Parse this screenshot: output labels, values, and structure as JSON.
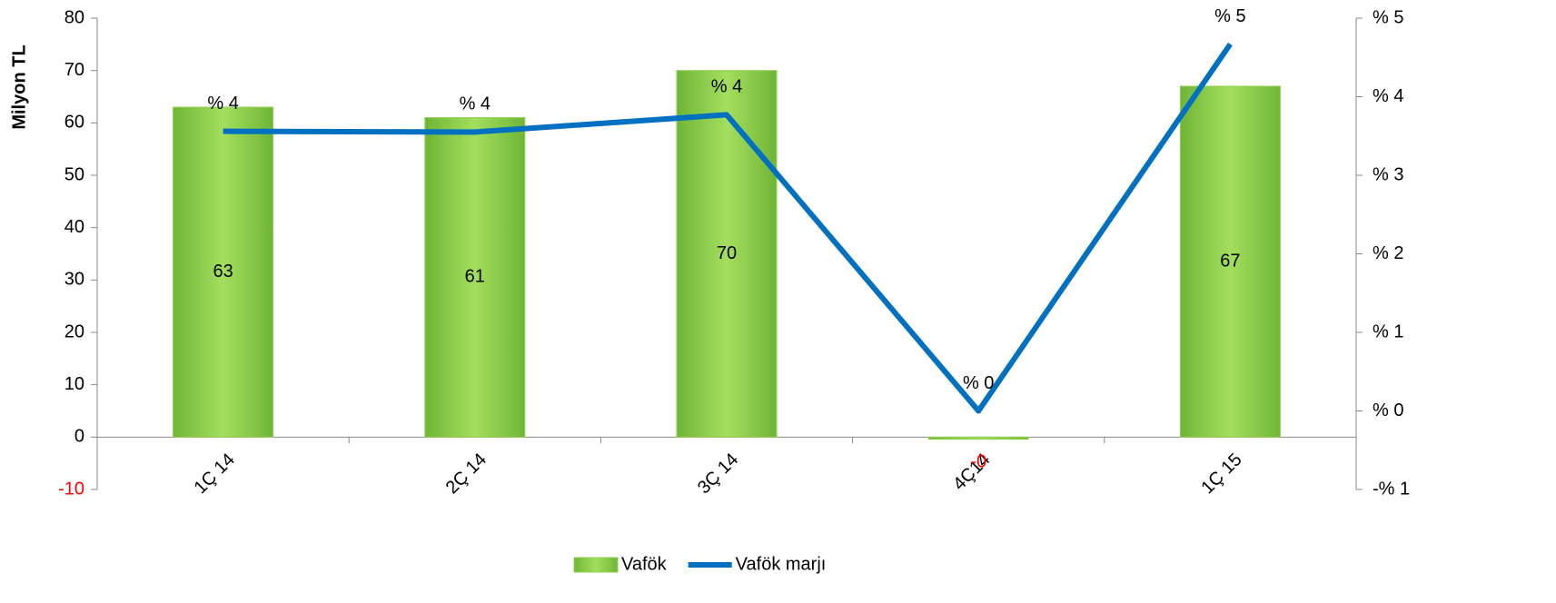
{
  "chart_data": {
    "type": "bar",
    "y_label": "Milyon TL",
    "categories": [
      "1Ç 14",
      "2Ç 14",
      "3Ç 14",
      "4Ç14",
      "1Ç 15"
    ],
    "series": [
      {
        "name": "Vafök",
        "type": "bar",
        "color": "#92d050",
        "values": [
          63,
          61,
          70,
          -0.4,
          67
        ],
        "value_labels": [
          "63",
          "61",
          "70",
          "-0",
          "67"
        ]
      },
      {
        "name": "Vafök marjı",
        "type": "line",
        "axis": "y2",
        "color": "#0070c0",
        "values": [
          3.56,
          3.55,
          3.77,
          0.0,
          4.67
        ],
        "value_labels": [
          "% 4",
          "% 4",
          "% 4",
          "% 0",
          "% 5"
        ]
      }
    ],
    "ylim": [
      -10,
      80
    ],
    "yticks": [
      -10,
      0,
      10,
      20,
      30,
      40,
      50,
      60,
      70,
      80
    ],
    "y2lim": [
      -1,
      5
    ],
    "y2ticks": [
      {
        "value": -1,
        "label": "-% 1"
      },
      {
        "value": 0,
        "label": "% 0"
      },
      {
        "value": 1,
        "label": "% 1"
      },
      {
        "value": 2,
        "label": "% 2"
      },
      {
        "value": 3,
        "label": "% 3"
      },
      {
        "value": 4,
        "label": "% 4"
      },
      {
        "value": 5,
        "label": "% 5"
      }
    ],
    "negative_color": "#ff0000",
    "legend": "bottom"
  }
}
